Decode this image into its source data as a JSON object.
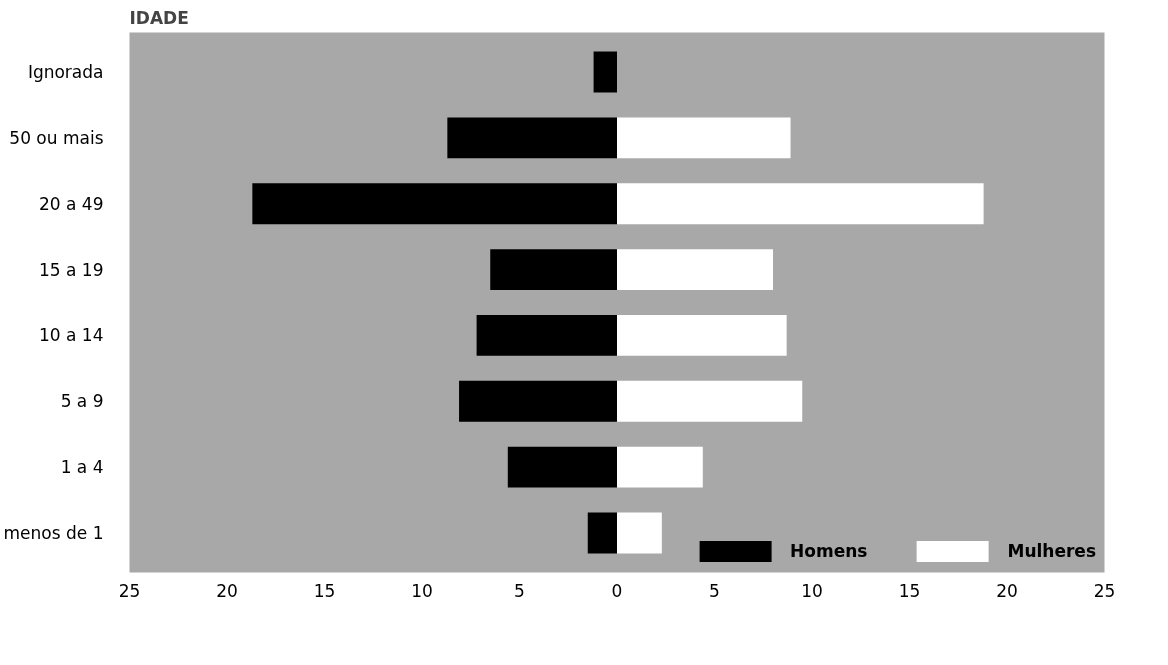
{
  "chart_data": {
    "type": "bar",
    "orientation": "horizontal",
    "ylabel": "IDADE",
    "categories": [
      "Ignorada",
      "50 ou mais",
      "20 a 49",
      "15 a 19",
      "10 a 14",
      "5 a 9",
      "1 a 4",
      "menos de 1"
    ],
    "series": [
      {
        "name": "Homens",
        "color": "#000000",
        "values": [
          -1.2,
          -8.7,
          -18.7,
          -6.5,
          -7.2,
          -8.1,
          -5.6,
          -1.5
        ]
      },
      {
        "name": "Mulheres",
        "color": "#ffffff",
        "values": [
          null,
          8.9,
          18.8,
          8.0,
          8.7,
          9.5,
          4.4,
          2.3
        ]
      }
    ],
    "xlim": [
      -25,
      25
    ],
    "xticks": [
      {
        "value": -25,
        "label": "25"
      },
      {
        "value": -20,
        "label": "20"
      },
      {
        "value": -15,
        "label": "15"
      },
      {
        "value": -10,
        "label": "10"
      },
      {
        "value": -5,
        "label": "5"
      },
      0,
      5,
      10,
      15,
      20,
      25
    ],
    "stacked": true,
    "grid": false,
    "legend": "bottom right"
  }
}
